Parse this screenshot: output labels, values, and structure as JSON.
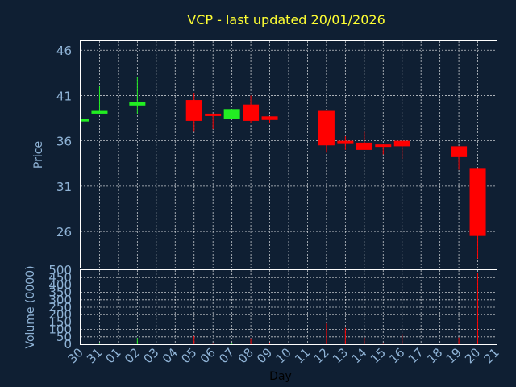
{
  "chart_data": {
    "type": "candlestick",
    "title": "VCP - last updated 20/01/2026",
    "xlabel": "Day",
    "ylabel": "Price",
    "volume_label": "Volume (0000)",
    "x_ticks": [
      "30",
      "31",
      "01",
      "02",
      "03",
      "04",
      "05",
      "06",
      "07",
      "08",
      "09",
      "10",
      "11",
      "12",
      "13",
      "14",
      "15",
      "16",
      "17",
      "18",
      "19",
      "20",
      "21"
    ],
    "price_ylim": [
      22,
      47
    ],
    "price_ticks": [
      26,
      31,
      36,
      41,
      46
    ],
    "volume_ylim": [
      0,
      500
    ],
    "volume_ticks": [
      0,
      50,
      100,
      150,
      200,
      250,
      300,
      350,
      400,
      450,
      500
    ],
    "colors": {
      "up": "#22ee22",
      "down": "#ff0000"
    },
    "candles": [
      {
        "day": "30",
        "open": 38.4,
        "high": 38.4,
        "low": 38.4,
        "close": 38.4,
        "volume": 0
      },
      {
        "day": "31",
        "open": 39.0,
        "high": 42.0,
        "low": 39.0,
        "close": 39.3,
        "volume": 4
      },
      {
        "day": "02",
        "open": 39.9,
        "high": 43.0,
        "low": 39.0,
        "close": 40.3,
        "volume": 42
      },
      {
        "day": "05",
        "open": 40.5,
        "high": 41.3,
        "low": 37.0,
        "close": 38.2,
        "volume": 55
      },
      {
        "day": "06",
        "open": 39.0,
        "high": 39.0,
        "low": 37.3,
        "close": 38.8,
        "volume": 3
      },
      {
        "day": "07",
        "open": 38.4,
        "high": 39.5,
        "low": 38.4,
        "close": 39.5,
        "volume": 5
      },
      {
        "day": "08",
        "open": 40.0,
        "high": 41.0,
        "low": 38.0,
        "close": 38.2,
        "volume": 40
      },
      {
        "day": "09",
        "open": 38.7,
        "high": 38.7,
        "low": 38.0,
        "close": 38.3,
        "volume": 5
      },
      {
        "day": "12",
        "open": 39.3,
        "high": 39.3,
        "low": 34.7,
        "close": 35.5,
        "volume": 140
      },
      {
        "day": "13",
        "open": 36.0,
        "high": 36.5,
        "low": 35.0,
        "close": 35.8,
        "volume": 110
      },
      {
        "day": "14",
        "open": 35.8,
        "high": 37.0,
        "low": 35.0,
        "close": 35.0,
        "volume": 45
      },
      {
        "day": "15",
        "open": 35.6,
        "high": 35.6,
        "low": 34.5,
        "close": 35.4,
        "volume": 3
      },
      {
        "day": "16",
        "open": 36.0,
        "high": 36.0,
        "low": 34.0,
        "close": 35.4,
        "volume": 70
      },
      {
        "day": "19",
        "open": 35.4,
        "high": 35.4,
        "low": 32.8,
        "close": 34.2,
        "volume": 45
      },
      {
        "day": "20",
        "open": 33.0,
        "high": 33.0,
        "low": 23.0,
        "close": 25.5,
        "volume": 480
      }
    ]
  }
}
